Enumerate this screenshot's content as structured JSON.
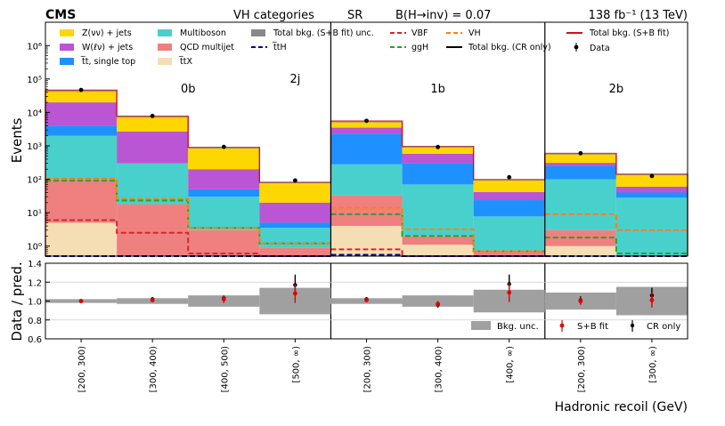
{
  "header": {
    "experiment": "CMS",
    "category_title": "VH categories",
    "region": "SR",
    "branching": "B(H→inv) = 0.07",
    "lumi": "138 fb⁻¹ (13 TeV)"
  },
  "chart_data": {
    "type": "bar",
    "stacked": true,
    "yscale": "log",
    "ylim": [
      0.5,
      5000000
    ],
    "ylabel": "Events",
    "xlabel": "Hadronic recoil (GeV)",
    "categories": [
      "[200, 300)",
      "[300, 400)",
      "[400, 500)",
      "[500, ∞)",
      "[200, 300)",
      "[300, 400)",
      "[400, ∞)",
      "[200, 300)",
      "[300, ∞)"
    ],
    "groups": [
      {
        "label": "2j",
        "start": 0,
        "end": 6
      },
      {
        "label": "0b",
        "start": 0,
        "end": 3
      },
      {
        "label": "1b",
        "start": 4,
        "end": 6
      },
      {
        "label": "2b",
        "start": 7,
        "end": 8
      }
    ],
    "yticks": [
      {
        "value": 1,
        "label": "10⁰"
      },
      {
        "value": 10,
        "label": "10¹"
      },
      {
        "value": 100,
        "label": "10²"
      },
      {
        "value": 1000,
        "label": "10³"
      },
      {
        "value": 10000,
        "label": "10⁴"
      },
      {
        "value": 100000,
        "label": "10⁵"
      },
      {
        "value": 1000000,
        "label": "10⁶"
      }
    ],
    "stack_order": [
      "ttX",
      "QCD multijet",
      "Multiboson",
      "tt, single top",
      "W(lv) + jets",
      "Z(vv) + jets"
    ],
    "series": [
      {
        "name": "ttX",
        "legend": "t̅tX",
        "color": "#f5deb3",
        "values": [
          5,
          0,
          0,
          0,
          4,
          1.1,
          0,
          1.0,
          0
        ]
      },
      {
        "name": "QCD multijet",
        "legend": "QCD multijet",
        "color": "#ef8080",
        "values": [
          95,
          18,
          3,
          0.9,
          29,
          0.9,
          0.7,
          2.0,
          0
        ]
      },
      {
        "name": "Multiboson",
        "legend": "Multiboson",
        "color": "#48d1cc",
        "values": [
          1900,
          282,
          27,
          2.6,
          247,
          68,
          7.0,
          97,
          28
        ]
      },
      {
        "name": "tt, single top",
        "legend": "t̅t, single top",
        "color": "#1e90ff",
        "values": [
          2000,
          0,
          20,
          1.5,
          2020,
          230,
          16,
          150,
          12
        ]
      },
      {
        "name": "W(lv) + jets",
        "legend": "W(ℓν) + jets",
        "color": "#ba55d3",
        "values": [
          16000,
          2400,
          150,
          15,
          1200,
          280,
          18,
          60,
          20
        ]
      },
      {
        "name": "Z(vv) + jets",
        "legend": "Z(νν) + jets",
        "color": "#ffd700",
        "values": [
          26000,
          5000,
          700,
          60,
          2000,
          380,
          55,
          280,
          80
        ]
      }
    ],
    "total_bkg": [
      46000,
      7700,
      900,
      80,
      5500,
      960,
      97,
      590,
      140
    ],
    "data": [
      47000,
      7800,
      930,
      92,
      5600,
      920,
      115,
      600,
      125
    ],
    "signal_lines": [
      {
        "name": "VBF",
        "color": "#d62728",
        "values": [
          6,
          2.5,
          0.6,
          0.3,
          0.8,
          0.5,
          0.4,
          0.3,
          0.2
        ]
      },
      {
        "name": "ggH",
        "color": "#2ca02c",
        "values": [
          90,
          23,
          3.5,
          1.2,
          9,
          2,
          0.7,
          1.8,
          0.6
        ]
      },
      {
        "name": "VH",
        "color": "#ff7f0e",
        "values": [
          105,
          26,
          3.5,
          1.2,
          14,
          3.2,
          0.7,
          9,
          3
        ]
      },
      {
        "name": "ttH",
        "color": "#00008b",
        "values": [
          0.4,
          0.2,
          0.1,
          0.05,
          0.55,
          0.3,
          0.2,
          0.3,
          0.2
        ]
      }
    ],
    "ratio": {
      "ylabel": "Data / pred.",
      "ylim": [
        0.6,
        1.4
      ],
      "yticks": [
        "0.6",
        "0.8",
        "1.0",
        "1.2",
        "1.4"
      ],
      "unc_band": [
        0.02,
        0.03,
        0.06,
        0.14,
        0.03,
        0.06,
        0.12,
        0.09,
        0.15
      ],
      "sb_fit": [
        1.0,
        1.01,
        1.02,
        1.08,
        1.01,
        0.97,
        1.09,
        1.0,
        1.01
      ],
      "sb_err": [
        0.01,
        0.012,
        0.04,
        0.1,
        0.015,
        0.03,
        0.1,
        0.04,
        0.08
      ],
      "cr_only": [
        1.0,
        1.02,
        1.03,
        1.17,
        1.02,
        0.96,
        1.18,
        1.01,
        1.06
      ],
      "cr_err": [
        0.006,
        0.012,
        0.03,
        0.11,
        0.012,
        0.03,
        0.1,
        0.04,
        0.08
      ]
    },
    "legend": {
      "z": "Z(νν) + jets",
      "w": "W(ℓν) + jets",
      "tt": "t̅t, single top",
      "mb": "Multiboson",
      "qcd": "QCD multijet",
      "ttx": "t̅tX",
      "unc": "Total bkg. (S+B fit) unc.",
      "tth": "t̅tH",
      "vbf": "VBF",
      "ggh": "ggH",
      "vh": "VH",
      "cronly": "Total bkg. (CR only)",
      "sbfit": "Total bkg. (S+B fit)",
      "data": "Data"
    },
    "ratio_legend": {
      "unc": "Bkg. unc.",
      "sb": "S+B fit",
      "cr": "CR only"
    }
  }
}
